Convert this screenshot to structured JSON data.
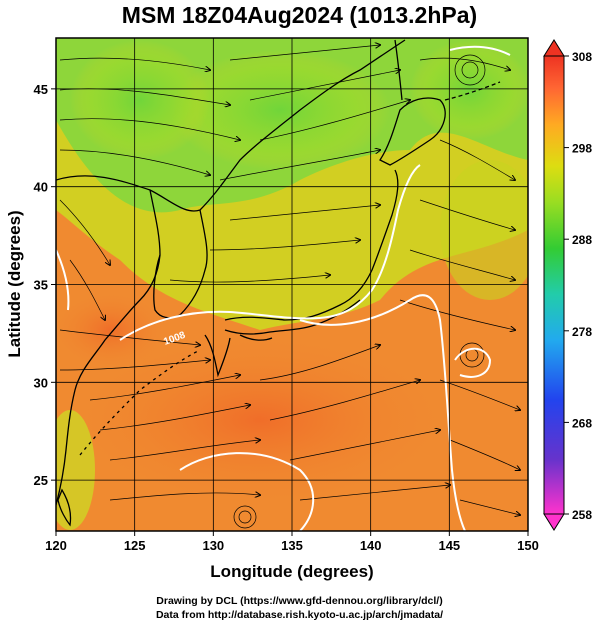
{
  "title": "MSM 18Z04Aug2024 (1013.2hPa)",
  "x_axis": {
    "label": "Longitude (degrees)",
    "range": [
      120,
      150
    ],
    "ticks": [
      120,
      125,
      130,
      135,
      140,
      145,
      150
    ]
  },
  "y_axis": {
    "label": "Latitude  (degrees)",
    "range": [
      22.4,
      47.6
    ],
    "ticks": [
      25,
      30,
      35,
      40,
      45
    ]
  },
  "colorbar": {
    "range": [
      258,
      308
    ],
    "ticks": [
      258,
      268,
      278,
      288,
      298,
      308
    ],
    "colors": [
      "#ff33cc",
      "#6633cc",
      "#2244ee",
      "#22aaee",
      "#22ccaa",
      "#33cc33",
      "#99dd22",
      "#dddd11",
      "#ffaa22",
      "#ff6633",
      "#ee3322"
    ]
  },
  "contour_label": "1008",
  "credits": {
    "line1": "Drawing by DCL (https://www.gfd-dennou.org/library/dcl/)",
    "line2": "Data from http://database.rish.kyoto-u.ac.jp/arch/jmadata/"
  },
  "colors": {
    "warm": "#f07a2c",
    "mid": "#c8d420",
    "cool": "#7ad63a",
    "land": "#000000",
    "isobar": "#ffffff"
  }
}
